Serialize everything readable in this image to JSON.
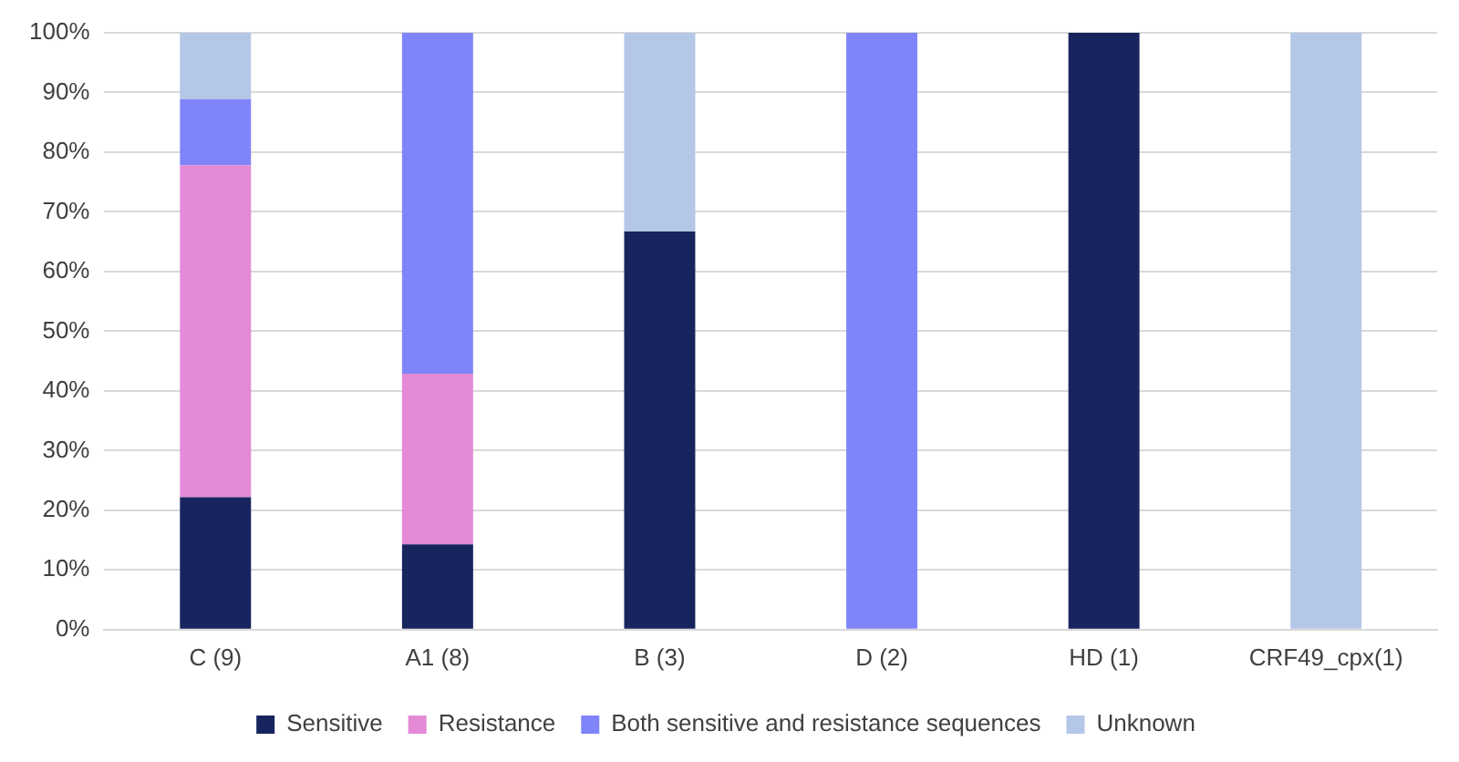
{
  "chart_data": {
    "type": "bar",
    "stacked": true,
    "categories": [
      "C (9)",
      "A1 (8)",
      "B (3)",
      "D (2)",
      "HD (1)",
      "CRF49_cpx(1)"
    ],
    "series": [
      {
        "name": "Sensitive",
        "color": "#17245e",
        "values": [
          22.2,
          14.3,
          66.7,
          0,
          100,
          0
        ]
      },
      {
        "name": "Resistance",
        "color": "#e48ad6",
        "values": [
          55.6,
          28.6,
          0,
          0,
          0,
          0
        ]
      },
      {
        "name": "Both sensitive and resistance sequences",
        "color": "#7f85f8",
        "values": [
          11.1,
          57.1,
          0,
          100,
          0,
          0
        ]
      },
      {
        "name": "Unknown",
        "color": "#b4c7e7",
        "values": [
          11.1,
          0,
          33.3,
          0,
          0,
          100
        ]
      }
    ],
    "ylim": [
      0,
      100
    ],
    "yticks": [
      {
        "value": 0,
        "label": "0%"
      },
      {
        "value": 10,
        "label": "10%"
      },
      {
        "value": 20,
        "label": "20%"
      },
      {
        "value": 30,
        "label": "30%"
      },
      {
        "value": 40,
        "label": "40%"
      },
      {
        "value": 50,
        "label": "50%"
      },
      {
        "value": 60,
        "label": "60%"
      },
      {
        "value": 70,
        "label": "70%"
      },
      {
        "value": 80,
        "label": "80%"
      },
      {
        "value": 90,
        "label": "90%"
      },
      {
        "value": 100,
        "label": "100%"
      }
    ],
    "grid": "y",
    "legend": "bottom"
  }
}
